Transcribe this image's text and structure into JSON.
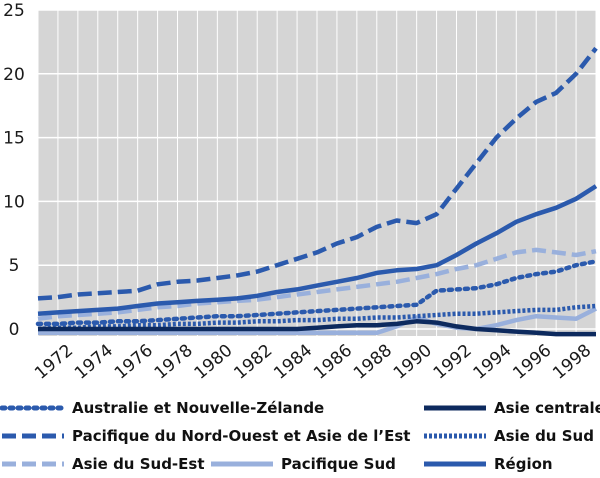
{
  "chart_data": {
    "type": "line",
    "title": "",
    "xlabel": "",
    "ylabel": "",
    "xlim": [
      1971,
      1999
    ],
    "ylim": [
      0,
      25
    ],
    "yticks": [
      0,
      5,
      10,
      15,
      20,
      25
    ],
    "xticks": [
      1972,
      1974,
      1976,
      1978,
      1980,
      1982,
      1984,
      1986,
      1988,
      1990,
      1992,
      1994,
      1996,
      1998
    ],
    "grid": "vertical-and-horizontal",
    "legend_position": "bottom",
    "x": [
      1971,
      1972,
      1973,
      1974,
      1975,
      1976,
      1977,
      1978,
      1979,
      1980,
      1981,
      1982,
      1983,
      1984,
      1985,
      1986,
      1987,
      1988,
      1989,
      1990,
      1991,
      1992,
      1993,
      1994,
      1995,
      1996,
      1997,
      1998,
      1999
    ],
    "series": [
      {
        "name": "Australie et Nouvelle-Zélande",
        "color": "#2b5aad",
        "dash": "dotted",
        "values": [
          0.4,
          0.4,
          0.5,
          0.5,
          0.6,
          0.6,
          0.7,
          0.8,
          0.9,
          1.0,
          1.0,
          1.1,
          1.2,
          1.3,
          1.4,
          1.5,
          1.6,
          1.7,
          1.8,
          1.9,
          3.0,
          3.1,
          3.2,
          3.5,
          4.0,
          4.3,
          4.5,
          5.0,
          5.3
        ]
      },
      {
        "name": "Asie centrale",
        "color": "#0d2a5e",
        "dash": "solid",
        "values": [
          0.0,
          0.0,
          0.0,
          0.0,
          0.0,
          0.0,
          0.0,
          0.0,
          0.0,
          0.0,
          0.0,
          0.0,
          0.0,
          0.0,
          0.1,
          0.2,
          0.3,
          0.3,
          0.4,
          0.6,
          0.5,
          0.2,
          0.0,
          -0.1,
          -0.2,
          -0.3,
          -0.4,
          -0.4,
          -0.4
        ]
      },
      {
        "name": "Pacifique du Nord-Ouest et Asie de l’Est",
        "color": "#2b5aad",
        "dash": "long-dash",
        "values": [
          2.4,
          2.5,
          2.7,
          2.8,
          2.9,
          3.0,
          3.5,
          3.7,
          3.8,
          4.0,
          4.2,
          4.5,
          5.0,
          5.5,
          6.0,
          6.7,
          7.2,
          8.0,
          8.5,
          8.3,
          9.0,
          11.0,
          13.0,
          15.0,
          16.5,
          17.8,
          18.5,
          20.0,
          22.0
        ]
      },
      {
        "name": "Asie du Sud",
        "color": "#2b5aad",
        "dash": "dense-dot",
        "values": [
          0.0,
          0.1,
          0.1,
          0.2,
          0.2,
          0.3,
          0.3,
          0.4,
          0.4,
          0.5,
          0.5,
          0.6,
          0.6,
          0.7,
          0.7,
          0.8,
          0.8,
          0.9,
          0.9,
          1.0,
          1.1,
          1.2,
          1.2,
          1.3,
          1.4,
          1.5,
          1.5,
          1.7,
          1.8
        ]
      },
      {
        "name": "Asie du Sud-Est",
        "color": "#99b0dc",
        "dash": "long-dash",
        "values": [
          0.8,
          1.0,
          1.1,
          1.2,
          1.3,
          1.5,
          1.7,
          1.8,
          2.0,
          2.1,
          2.2,
          2.3,
          2.5,
          2.7,
          2.9,
          3.1,
          3.3,
          3.5,
          3.7,
          4.0,
          4.3,
          4.7,
          5.0,
          5.5,
          6.0,
          6.2,
          6.0,
          5.8,
          6.1
        ]
      },
      {
        "name": "Pacifique Sud",
        "color": "#99b0dc",
        "dash": "solid",
        "values": [
          -0.3,
          -0.3,
          -0.3,
          -0.3,
          -0.3,
          -0.3,
          -0.3,
          -0.3,
          -0.3,
          -0.3,
          -0.3,
          -0.3,
          -0.3,
          -0.3,
          -0.3,
          -0.3,
          -0.3,
          -0.3,
          0.2,
          0.9,
          0.4,
          0.1,
          0.0,
          0.3,
          0.7,
          1.0,
          0.9,
          0.8,
          1.6
        ]
      },
      {
        "name": "Région",
        "color": "#2b5aad",
        "dash": "solid",
        "values": [
          1.2,
          1.3,
          1.4,
          1.5,
          1.6,
          1.8,
          2.0,
          2.1,
          2.2,
          2.3,
          2.4,
          2.6,
          2.9,
          3.1,
          3.4,
          3.7,
          4.0,
          4.4,
          4.6,
          4.7,
          5.0,
          5.8,
          6.7,
          7.5,
          8.4,
          9.0,
          9.5,
          10.2,
          11.2
        ]
      }
    ],
    "legend_layout": [
      {
        "series": 0,
        "row": 0,
        "col": 0
      },
      {
        "series": 1,
        "row": 0,
        "col": 2
      },
      {
        "series": 2,
        "row": 1,
        "col": 0
      },
      {
        "series": 3,
        "row": 1,
        "col": 2
      },
      {
        "series": 4,
        "row": 2,
        "col": 0
      },
      {
        "series": 5,
        "row": 2,
        "col": 1
      },
      {
        "series": 6,
        "row": 2,
        "col": 2
      }
    ]
  }
}
